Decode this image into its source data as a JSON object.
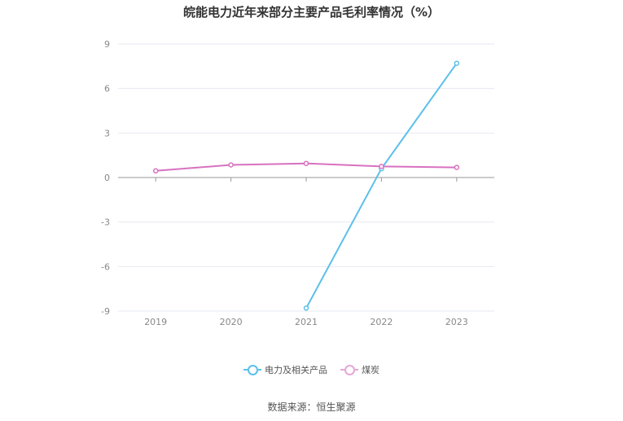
{
  "chart_data": {
    "type": "line",
    "title": "皖能电力近年来部分主要产品毛利率情况（%）",
    "categories": [
      "2019",
      "2020",
      "2021",
      "2022",
      "2023"
    ],
    "series": [
      {
        "name": "电力及相关产品",
        "color": "#5bc0eb",
        "values": [
          null,
          null,
          -8.8,
          0.6,
          7.7
        ]
      },
      {
        "name": "煤炭",
        "color": "#d871c0",
        "values": [
          0.45,
          0.85,
          0.95,
          0.75,
          0.68
        ]
      }
    ],
    "ylim": [
      -9,
      9
    ],
    "yticks": [
      9,
      6,
      3,
      0,
      -3,
      -6,
      -9
    ],
    "xlabel": "",
    "ylabel": "",
    "grid": true,
    "legend_position": "bottom"
  },
  "source": "数据来源：恒生聚源"
}
